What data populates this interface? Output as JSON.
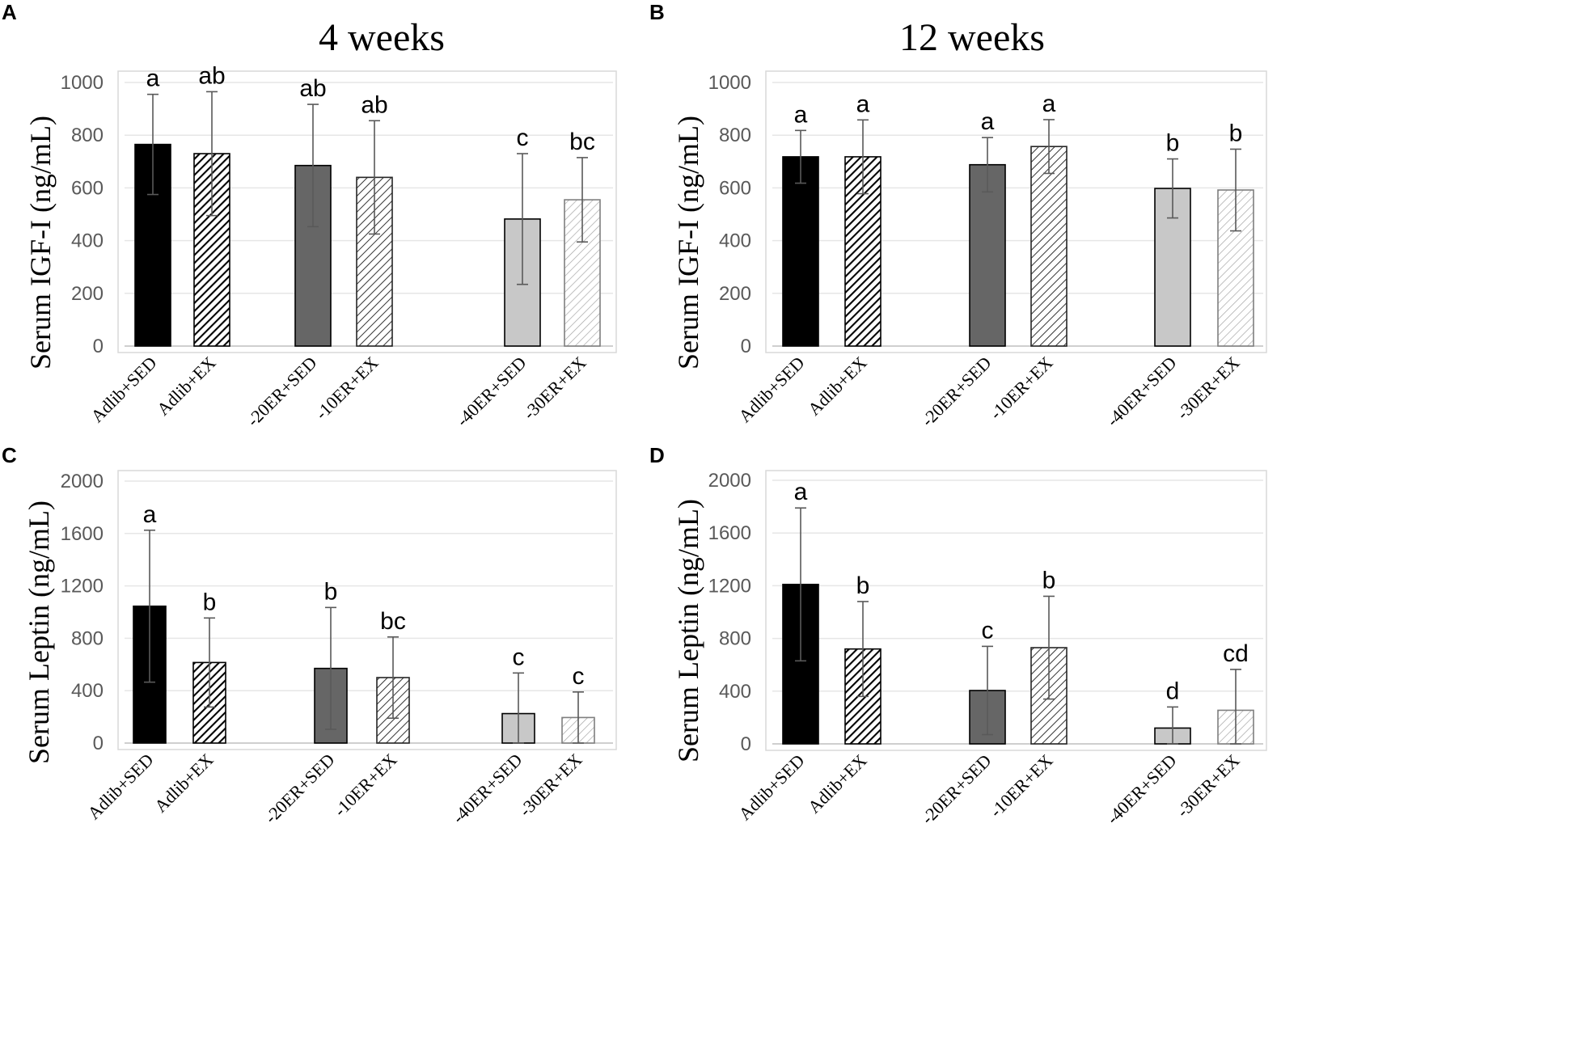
{
  "figure_name": "IGF-I and Leptin by diet/exercise group",
  "colors": {
    "black": "#000000",
    "dark_gray": "#666666",
    "light_gray": "#c8c8c8",
    "grid": "#e6e6e6",
    "tick": "#595959"
  },
  "chart_data": [
    {
      "panel": "A",
      "type": "bar",
      "title": "4 weeks",
      "ylabel": "Serum IGF-I (ng/mL)",
      "xlabel": "",
      "ylim": [
        0,
        1000
      ],
      "yticks": [
        "0",
        "200",
        "400",
        "600",
        "800",
        "1000"
      ],
      "categories": [
        "Adlib+SED",
        "Adlib+EX",
        "-20ER+SED",
        "-10ER+EX",
        "-40ER+SED",
        "-30ER+EX"
      ],
      "values": [
        765,
        730,
        685,
        640,
        482,
        555
      ],
      "errors": [
        190,
        235,
        232,
        215,
        248,
        160
      ],
      "significance": [
        "a",
        "ab",
        "ab",
        "ab",
        "c",
        "bc"
      ],
      "grid": true
    },
    {
      "panel": "B",
      "type": "bar",
      "title": "12 weeks",
      "ylabel": "Serum IGF-I (ng/mL)",
      "xlabel": "",
      "ylim": [
        0,
        1000
      ],
      "yticks": [
        "0",
        "200",
        "400",
        "600",
        "800",
        "1000"
      ],
      "categories": [
        "Adlib+SED",
        "Adlib+EX",
        "-20ER+SED",
        "-10ER+EX",
        "-40ER+SED",
        "-30ER+EX"
      ],
      "values": [
        718,
        718,
        688,
        757,
        598,
        592
      ],
      "errors": [
        100,
        140,
        103,
        102,
        112,
        155
      ],
      "significance": [
        "a",
        "a",
        "a",
        "a",
        "b",
        "b"
      ],
      "grid": true
    },
    {
      "panel": "C",
      "type": "bar",
      "title": "",
      "ylabel": "Serum Leptin (ng/mL)",
      "xlabel": "",
      "ylim": [
        0,
        2000
      ],
      "yticks": [
        "0",
        "400",
        "800",
        "1200",
        "1600",
        "2000"
      ],
      "categories": [
        "Adlib+SED",
        "Adlib+EX",
        "-20ER+SED",
        "-10ER+EX",
        "-40ER+SED",
        "-30ER+EX"
      ],
      "values": [
        1045,
        615,
        570,
        500,
        225,
        195
      ],
      "errors": [
        580,
        340,
        465,
        310,
        310,
        195
      ],
      "significance": [
        "a",
        "b",
        "b",
        "bc",
        "c",
        "c"
      ],
      "grid": true
    },
    {
      "panel": "D",
      "type": "bar",
      "title": "",
      "ylabel": "Serum Leptin (ng/mL)",
      "xlabel": "",
      "ylim": [
        0,
        2000
      ],
      "yticks": [
        "0",
        "400",
        "800",
        "1200",
        "1600",
        "2000"
      ],
      "categories": [
        "Adlib+SED",
        "Adlib+EX",
        "-20ER+SED",
        "-10ER+EX",
        "-40ER+SED",
        "-30ER+EX"
      ],
      "values": [
        1210,
        720,
        405,
        730,
        120,
        255
      ],
      "errors": [
        580,
        360,
        335,
        390,
        160,
        310
      ],
      "significance": [
        "a",
        "b",
        "c",
        "b",
        "d",
        "cd"
      ],
      "grid": true
    }
  ]
}
